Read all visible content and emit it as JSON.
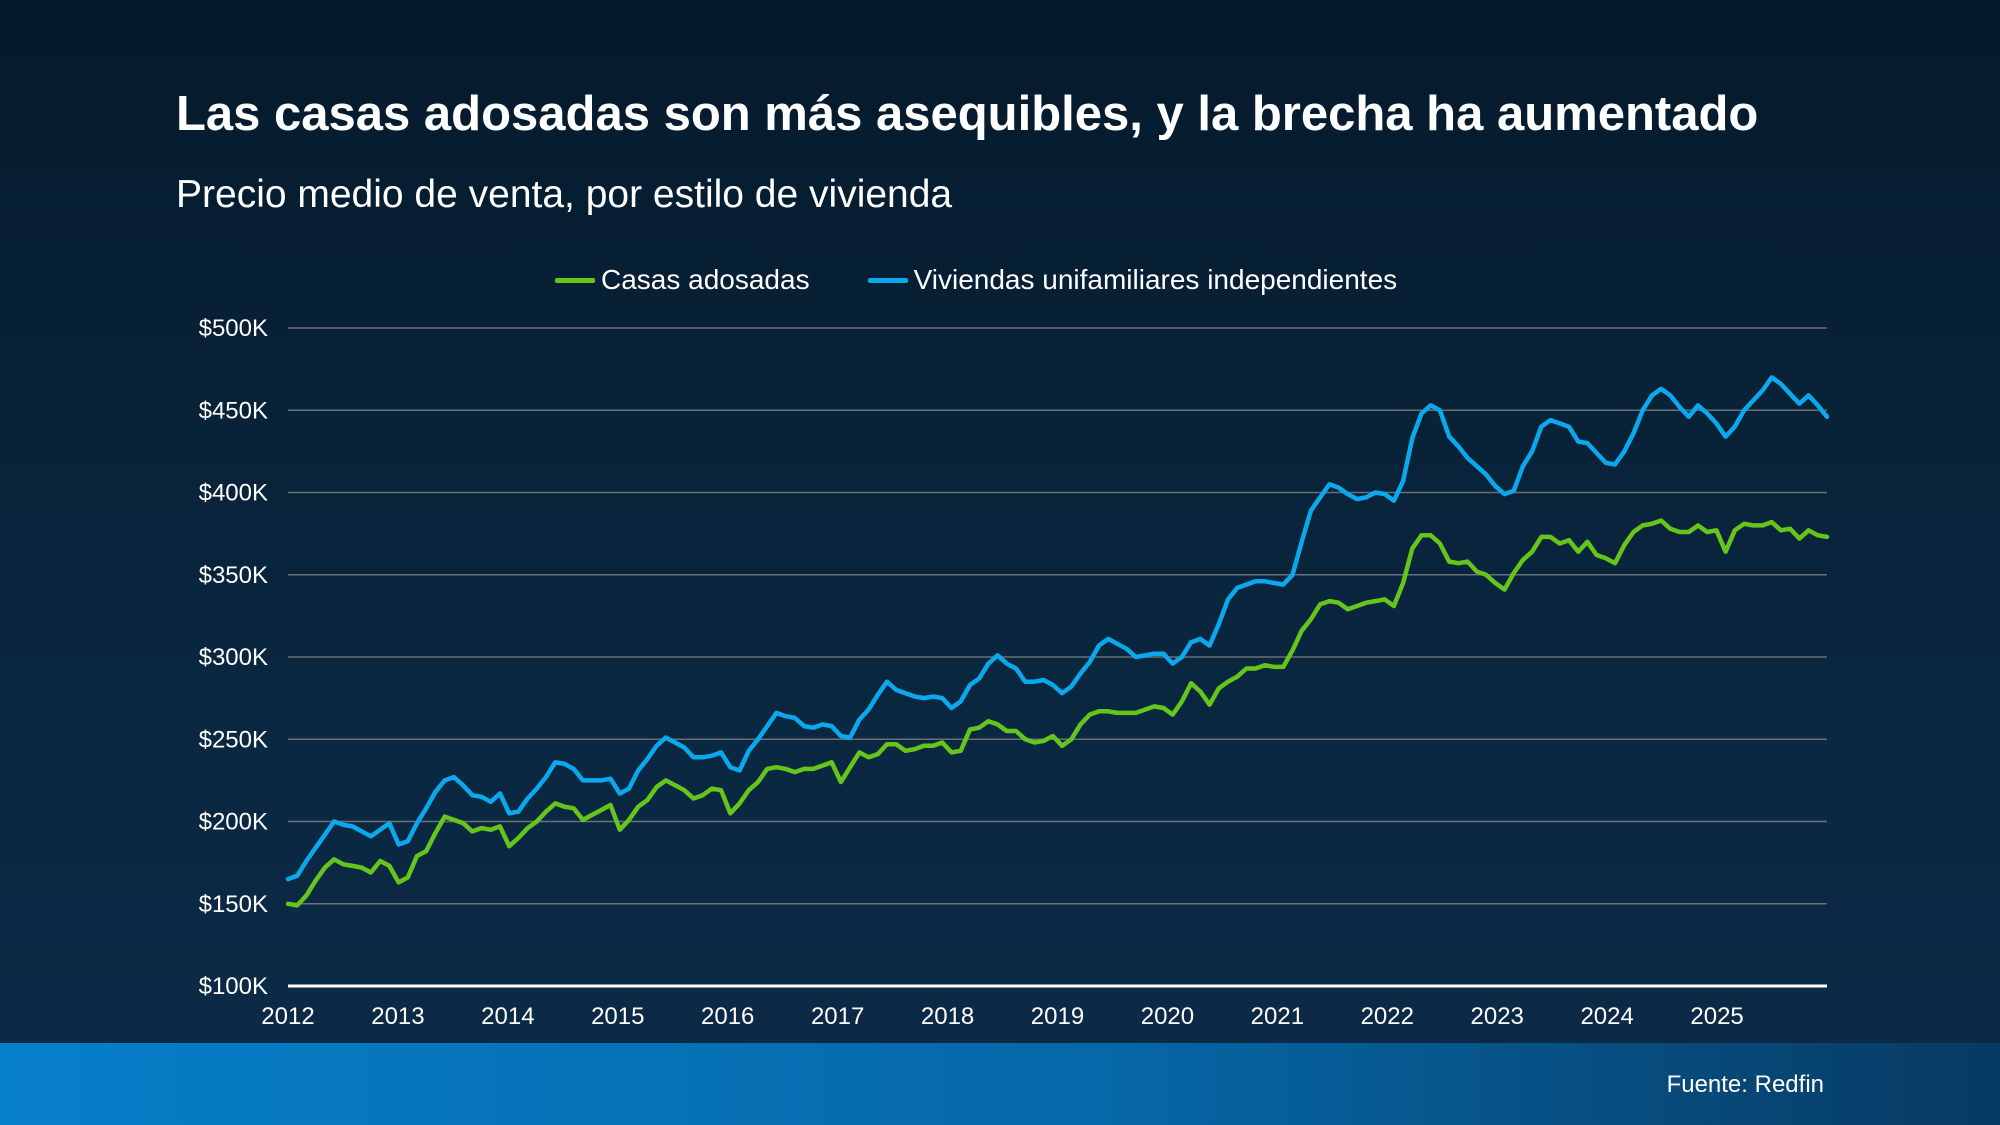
{
  "colors": {
    "townhouse": "#66c51a",
    "single_family": "#0aa9ee",
    "grid": "#6b6f74",
    "axis": "#ffffff"
  },
  "chart_data": {
    "type": "line",
    "title": "Las casas adosadas son más asequibles, y la brecha ha aumentado",
    "subtitle": "Precio medio de venta, por estilo de vivienda",
    "xlabel": "",
    "ylabel": "",
    "x_start": "2012-01",
    "x_frequency": "monthly",
    "x_ticks": [
      "2012",
      "2013",
      "2014",
      "2015",
      "2016",
      "2017",
      "2018",
      "2019",
      "2020",
      "2021",
      "2022",
      "2023",
      "2024",
      "2025"
    ],
    "y_ticks": [
      "$100K",
      "$150K",
      "$200K",
      "$250K",
      "$300K",
      "$350K",
      "$400K",
      "$450K",
      "$500K"
    ],
    "ylim": [
      100,
      500
    ],
    "units": "thousands USD",
    "grid": true,
    "legend_position": "top-center",
    "series": [
      {
        "name": "Casas adosadas",
        "color_key": "townhouse",
        "values": [
          150,
          149,
          155,
          164,
          172,
          177,
          174,
          173,
          172,
          169,
          176,
          173,
          163,
          166,
          179,
          182,
          193,
          203,
          201,
          199,
          194,
          196,
          195,
          197,
          185,
          190,
          196,
          200,
          206,
          211,
          209,
          208,
          201,
          204,
          207,
          210,
          195,
          201,
          209,
          213,
          221,
          225,
          222,
          219,
          214,
          216,
          220,
          219,
          205,
          211,
          219,
          224,
          232,
          233,
          232,
          230,
          232,
          232,
          234,
          236,
          224,
          233,
          242,
          239,
          241,
          247,
          247,
          243,
          244,
          246,
          246,
          248,
          242,
          243,
          256,
          257,
          261,
          259,
          255,
          255,
          250,
          248,
          249,
          252,
          246,
          250,
          259,
          265,
          267,
          267,
          266,
          266,
          266,
          268,
          270,
          269,
          265,
          273,
          284,
          279,
          271,
          281,
          285,
          288,
          293,
          293,
          295,
          294,
          294,
          304,
          316,
          323,
          332,
          334,
          333,
          329,
          331,
          333,
          334,
          335,
          331,
          345,
          366,
          374,
          374,
          369,
          358,
          357,
          358,
          352,
          350,
          345,
          341,
          351,
          359,
          364,
          373,
          373,
          369,
          371,
          364,
          370,
          362,
          360,
          357,
          368,
          376,
          380,
          381,
          383,
          378,
          376,
          376,
          380,
          376,
          377,
          364,
          377,
          381,
          380,
          380,
          382,
          377,
          378,
          372,
          377,
          374,
          373
        ]
      },
      {
        "name": "Viviendas unifamiliares independientes",
        "color_key": "single_family",
        "values": [
          165,
          167,
          176,
          184,
          192,
          200,
          198,
          197,
          194,
          191,
          195,
          199,
          186,
          188,
          199,
          208,
          218,
          225,
          227,
          222,
          216,
          215,
          212,
          217,
          205,
          206,
          214,
          220,
          227,
          236,
          235,
          232,
          225,
          225,
          225,
          226,
          217,
          220,
          231,
          238,
          246,
          251,
          248,
          245,
          239,
          239,
          240,
          242,
          233,
          231,
          243,
          250,
          258,
          266,
          264,
          263,
          258,
          257,
          259,
          258,
          252,
          251,
          262,
          268,
          277,
          285,
          280,
          278,
          276,
          275,
          276,
          275,
          269,
          273,
          283,
          287,
          296,
          301,
          296,
          293,
          285,
          285,
          286,
          283,
          278,
          282,
          290,
          297,
          307,
          311,
          308,
          305,
          300,
          301,
          302,
          302,
          296,
          300,
          309,
          311,
          307,
          320,
          335,
          342,
          344,
          346,
          346,
          345,
          344,
          350,
          370,
          389,
          397,
          405,
          403,
          399,
          396,
          397,
          400,
          399,
          395,
          407,
          433,
          448,
          453,
          450,
          434,
          428,
          421,
          416,
          411,
          404,
          399,
          401,
          416,
          425,
          440,
          444,
          442,
          440,
          431,
          430,
          424,
          418,
          417,
          425,
          436,
          450,
          459,
          463,
          459,
          452,
          446,
          453,
          448,
          442,
          434,
          440,
          450,
          456,
          462,
          470,
          466,
          460,
          454,
          459,
          453,
          446
        ]
      }
    ]
  },
  "footer": {
    "source": "Fuente: Redfin"
  }
}
